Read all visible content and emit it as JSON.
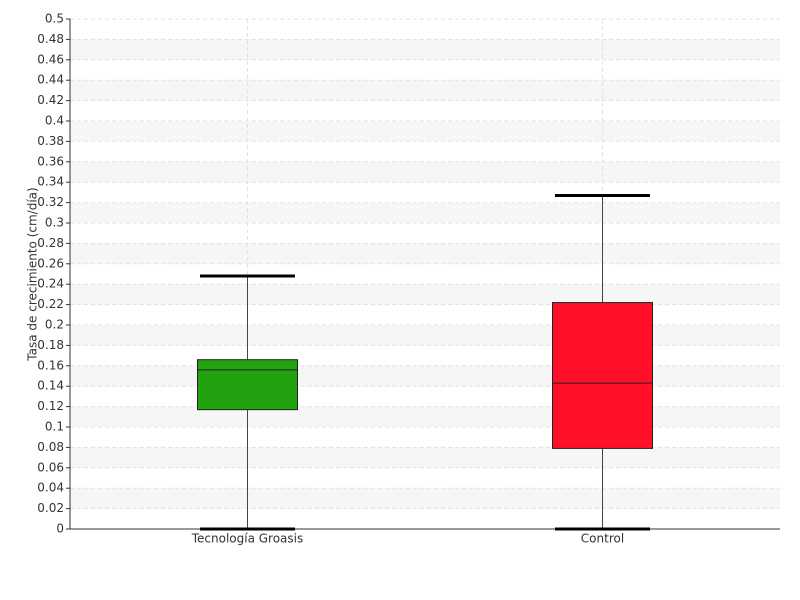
{
  "chart_data": {
    "type": "box",
    "y_label": "Tasa de crecimiento (cm/día)",
    "categories": [
      "Tecnología Groasis",
      "Control"
    ],
    "colors": [
      "#22a20f",
      "#ff0f28"
    ],
    "min": [
      0,
      0
    ],
    "q1": [
      0.117,
      0.079
    ],
    "median": [
      0.156,
      0.143
    ],
    "q3": [
      0.166,
      0.222
    ],
    "max": [
      0.248,
      0.327
    ],
    "ylim": [
      0,
      0.5
    ],
    "yticks": [
      0,
      0.02,
      0.04,
      0.06,
      0.08,
      0.1,
      0.12,
      0.14,
      0.16,
      0.18,
      0.2,
      0.22,
      0.24,
      0.26,
      0.28,
      0.3,
      0.32,
      0.34,
      0.36,
      0.38,
      0.4,
      0.42,
      0.44,
      0.46,
      0.48,
      0.5
    ],
    "grid": true
  }
}
